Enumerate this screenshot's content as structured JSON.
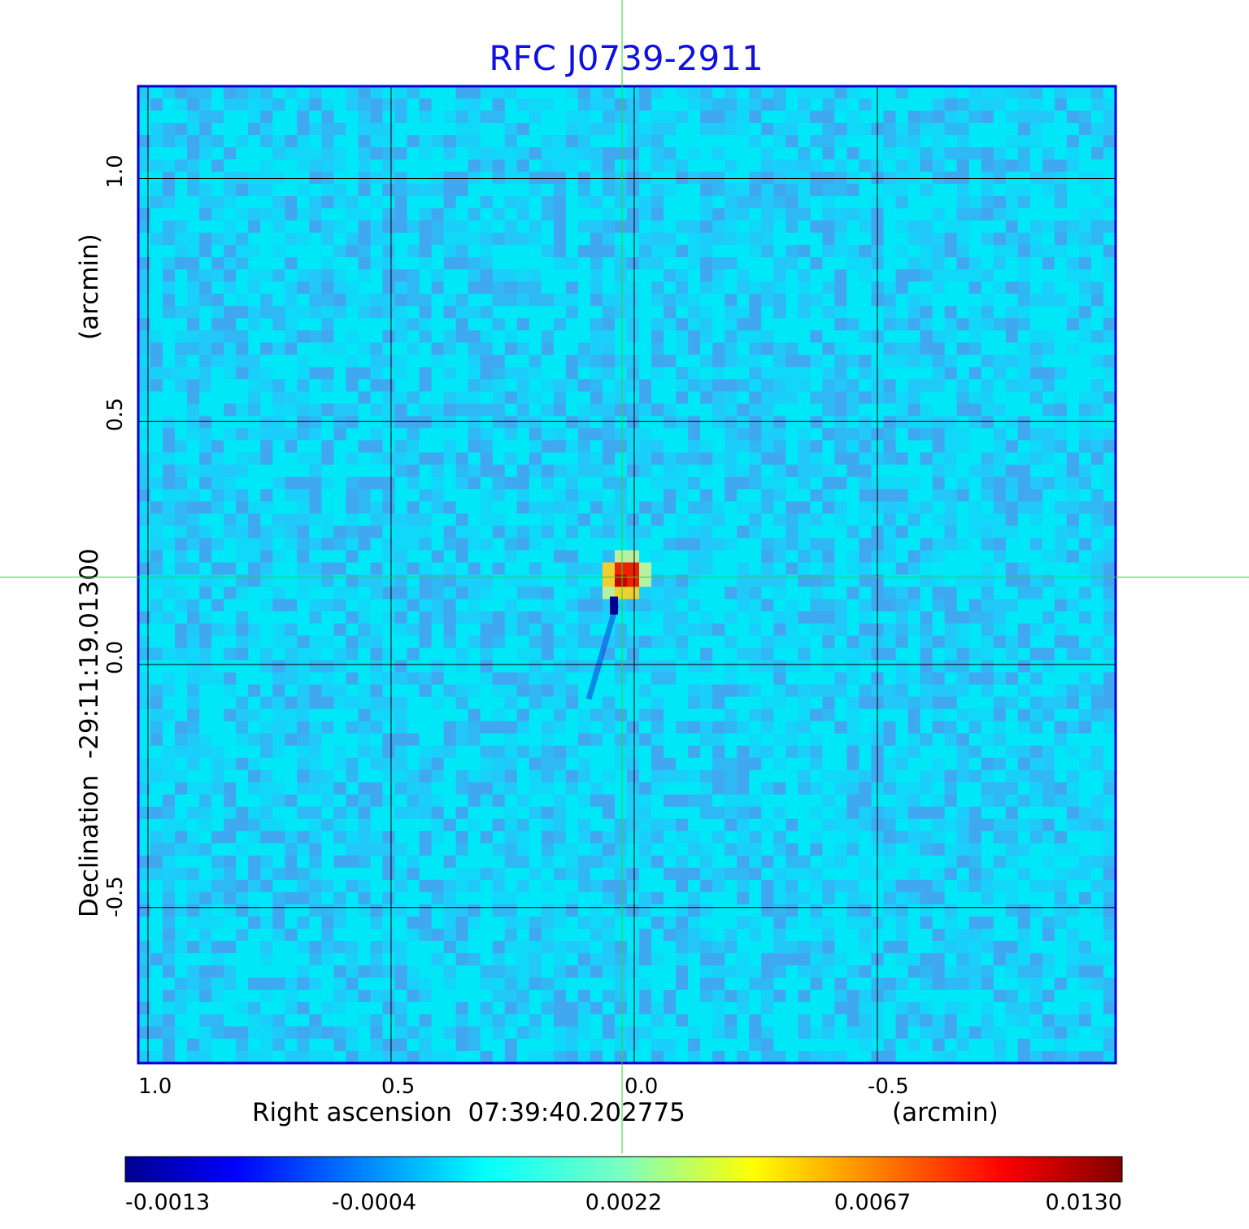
{
  "chart_data": {
    "type": "heatmap",
    "title": "RFC J0739-2911",
    "xlabel": "Right ascension  07:39:40.202775",
    "xunit": "(arcmin)",
    "ylabel": "Declination  -29:11:19.01300",
    "yunit": "(arcmin)",
    "x_ticks": [
      "1.0",
      "0.5",
      "0.0",
      "-0.5"
    ],
    "x_tick_values": [
      1.0,
      0.5,
      0.0,
      -0.5
    ],
    "y_ticks": [
      "1.0",
      "0.5",
      "0.0",
      "-0.5"
    ],
    "y_tick_values": [
      1.0,
      0.5,
      0.0,
      -0.5
    ],
    "xlim": [
      1.02,
      -0.99
    ],
    "ylim": [
      -0.82,
      1.19
    ],
    "grid": true,
    "colormap": "jet",
    "background_level": 0.0,
    "source": {
      "x": 0.02,
      "y": 0.18,
      "peak": 0.013
    },
    "crosshair": {
      "x": 0.025,
      "y": 0.18,
      "color": "#22dd22"
    },
    "colorbar": {
      "orientation": "horizontal",
      "tick_labels": [
        "-0.0013",
        "-0.0004",
        "0.0022",
        "0.0067",
        "0.0130"
      ],
      "tick_values": [
        -0.0013,
        -0.0004,
        0.0022,
        0.0067,
        0.013
      ]
    },
    "frame_color": "#0000cc"
  }
}
